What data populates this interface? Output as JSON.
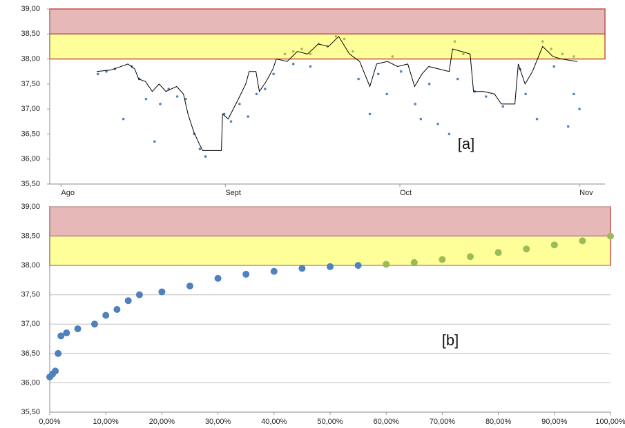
{
  "chart_data": [
    {
      "type": "line",
      "annotation": "[a]",
      "xlim": [
        -2,
        96
      ],
      "ylim": [
        35.5,
        39
      ],
      "xticks": [
        {
          "value": 0,
          "label": "Ago"
        },
        {
          "value": 29,
          "label": "Sept"
        },
        {
          "value": 59.8,
          "label": "Oct"
        },
        {
          "value": 91.5,
          "label": "Nov"
        }
      ],
      "yticks": [
        {
          "value": 35.5,
          "label": "35,50"
        },
        {
          "value": 36,
          "label": "36,00"
        },
        {
          "value": 36.5,
          "label": "36,50"
        },
        {
          "value": 37,
          "label": "37,00"
        },
        {
          "value": 37.5,
          "label": "37,50"
        },
        {
          "value": 38,
          "label": "38,00"
        },
        {
          "value": 38.5,
          "label": "38,50"
        },
        {
          "value": 39,
          "label": "39,00"
        }
      ],
      "grid": false,
      "bands": [
        {
          "from": 38.5,
          "to": 39,
          "color": "#e6b9b8"
        },
        {
          "from": 38,
          "to": 38.5,
          "color": "#ffff99"
        }
      ],
      "band_border": "#c0504d",
      "series": [
        {
          "style": "points",
          "color": "#4f81bd",
          "x": [
            6.5,
            8,
            9.5,
            11,
            12.5,
            13.8,
            15,
            16.5,
            17.5,
            19,
            20.5,
            22,
            23.5,
            24.5,
            25.5,
            28.8,
            30,
            31.5,
            33,
            34.5,
            36,
            37.5,
            41,
            44,
            52.5,
            54.5,
            56,
            57.5,
            60,
            62.5,
            63.5,
            65,
            66.5,
            68.5,
            70,
            73,
            75,
            78,
            81,
            82,
            84,
            87,
            89.5,
            90.5,
            91.5
          ],
          "y": [
            37.7,
            37.75,
            37.8,
            36.8,
            37.85,
            37.6,
            37.2,
            36.35,
            37.1,
            37.4,
            37.25,
            37.2,
            36.5,
            36.2,
            36.05,
            36.9,
            36.75,
            37.1,
            36.85,
            37.3,
            37.4,
            37.7,
            37.9,
            37.85,
            37.6,
            36.9,
            37.7,
            37.3,
            37.75,
            37.1,
            36.8,
            37.5,
            36.7,
            36.5,
            37.6,
            37.35,
            37.25,
            37.05,
            37.8,
            37.3,
            36.8,
            37.85,
            36.65,
            37.3,
            37.0
          ]
        },
        {
          "style": "points",
          "color": "#9bbb59",
          "x": [
            39.5,
            41,
            42.5,
            44,
            45.5,
            47,
            48.5,
            50,
            51.5,
            58.5,
            69.5,
            71,
            85,
            86.5,
            88.5,
            90.5
          ],
          "y": [
            38.1,
            38.15,
            38.2,
            38.1,
            38.3,
            38.25,
            38.45,
            38.4,
            38.15,
            38.05,
            38.35,
            38.1,
            38.35,
            38.2,
            38.1,
            38.05
          ]
        },
        {
          "style": "line",
          "color": "#000000",
          "x": [
            6.3,
            8.8,
            10.6,
            11.8,
            13,
            13.7,
            14.9,
            16.1,
            17.3,
            18.5,
            20.4,
            21.6,
            22.4,
            23.4,
            24.4,
            25,
            28.3,
            28.5,
            29.5,
            31.3,
            32.6,
            33.2,
            34.4,
            35,
            36.2,
            37.4,
            38,
            39.9,
            41.7,
            43.5,
            45.4,
            47.2,
            49,
            50.9,
            52.7,
            54.5,
            55.7,
            57.6,
            59.4,
            61.2,
            62.4,
            63.7,
            64.9,
            66.7,
            68.5,
            69.1,
            72.2,
            72.8,
            74.6,
            76.5,
            77.7,
            80.1,
            80.7,
            81.9,
            83.2,
            85,
            86.8,
            88.3,
            91.1
          ],
          "y": [
            37.75,
            37.78,
            37.85,
            37.9,
            37.8,
            37.6,
            37.55,
            37.35,
            37.5,
            37.35,
            37.45,
            37.3,
            36.9,
            36.55,
            36.3,
            36.17,
            36.17,
            36.9,
            36.8,
            37.2,
            37.5,
            37.75,
            37.75,
            37.35,
            37.55,
            37.8,
            38.0,
            37.95,
            38.15,
            38.1,
            38.3,
            38.25,
            38.45,
            38.1,
            37.95,
            37.45,
            37.9,
            37.95,
            37.85,
            37.9,
            37.45,
            37.7,
            37.85,
            37.8,
            37.75,
            38.2,
            38.1,
            37.35,
            37.35,
            37.3,
            37.1,
            37.1,
            37.9,
            37.5,
            37.75,
            38.25,
            38.05,
            38.0,
            37.95
          ]
        }
      ]
    },
    {
      "type": "scatter",
      "annotation": "[b]",
      "xlim": [
        0,
        100
      ],
      "ylim": [
        35.5,
        39
      ],
      "xticks": [
        {
          "value": 0,
          "label": "0,00%"
        },
        {
          "value": 10,
          "label": "10,00%"
        },
        {
          "value": 20,
          "label": "20,00%"
        },
        {
          "value": 30,
          "label": "30,00%"
        },
        {
          "value": 40,
          "label": "40,00%"
        },
        {
          "value": 50,
          "label": "50,00%"
        },
        {
          "value": 60,
          "label": "60,00%"
        },
        {
          "value": 70,
          "label": "70,00%"
        },
        {
          "value": 80,
          "label": "80,00%"
        },
        {
          "value": 90,
          "label": "90,00%"
        },
        {
          "value": 100,
          "label": "100,00%"
        }
      ],
      "yticks": [
        {
          "value": 35.5,
          "label": "35,50"
        },
        {
          "value": 36,
          "label": "36,00"
        },
        {
          "value": 36.5,
          "label": "36,50"
        },
        {
          "value": 37,
          "label": "37,00"
        },
        {
          "value": 37.5,
          "label": "37,50"
        },
        {
          "value": 38,
          "label": "38,00"
        },
        {
          "value": 38.5,
          "label": "38,50"
        },
        {
          "value": 39,
          "label": "39,00"
        }
      ],
      "grid": true,
      "bands": [
        {
          "from": 38.5,
          "to": 39,
          "color": "#e6b9b8"
        },
        {
          "from": 38,
          "to": 38.5,
          "color": "#ffff99"
        }
      ],
      "band_border": "#c0504d",
      "series": [
        {
          "style": "points",
          "color": "#4f81bd",
          "x": [
            0,
            0.5,
            1,
            1.5,
            2,
            3,
            5,
            8,
            10,
            12,
            14,
            16,
            20,
            25,
            30,
            35,
            40,
            45,
            50,
            55
          ],
          "y": [
            36.1,
            36.15,
            36.2,
            36.5,
            36.8,
            36.85,
            36.92,
            37.0,
            37.15,
            37.25,
            37.4,
            37.5,
            37.55,
            37.65,
            37.78,
            37.85,
            37.9,
            37.95,
            37.98,
            38.0
          ]
        },
        {
          "style": "points",
          "color": "#9bbb59",
          "x": [
            60,
            65,
            70,
            75,
            80,
            85,
            90,
            95,
            100
          ],
          "y": [
            38.02,
            38.05,
            38.1,
            38.15,
            38.22,
            38.28,
            38.35,
            38.42,
            38.5
          ]
        }
      ]
    }
  ]
}
